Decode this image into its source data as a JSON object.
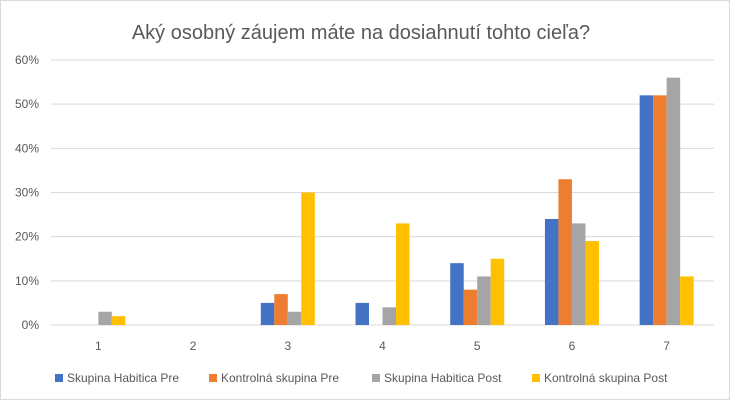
{
  "chart_data": {
    "type": "bar",
    "title": "Aký osobný záujem máte na dosiahnutí tohto cieľa?",
    "xlabel": "",
    "ylabel": "",
    "categories": [
      "1",
      "2",
      "3",
      "4",
      "5",
      "6",
      "7"
    ],
    "y_ticks": [
      "0%",
      "10%",
      "20%",
      "30%",
      "40%",
      "50%",
      "60%"
    ],
    "ylim": [
      0,
      60
    ],
    "grid": true,
    "legend_position": "bottom",
    "series": [
      {
        "name": "Skupina Habitica Pre",
        "color": "#4472c4",
        "values": [
          0,
          0,
          5,
          5,
          14,
          24,
          52
        ]
      },
      {
        "name": "Kontrolná skupina Pre",
        "color": "#ed7d31",
        "values": [
          0,
          0,
          7,
          0,
          8,
          33,
          52
        ]
      },
      {
        "name": "Skupina Habitica Post",
        "color": "#a5a5a5",
        "values": [
          3,
          0,
          3,
          4,
          11,
          23,
          56
        ]
      },
      {
        "name": "Kontrolná skupina Post",
        "color": "#ffc000",
        "values": [
          2,
          0,
          30,
          23,
          15,
          19,
          11
        ]
      }
    ]
  }
}
